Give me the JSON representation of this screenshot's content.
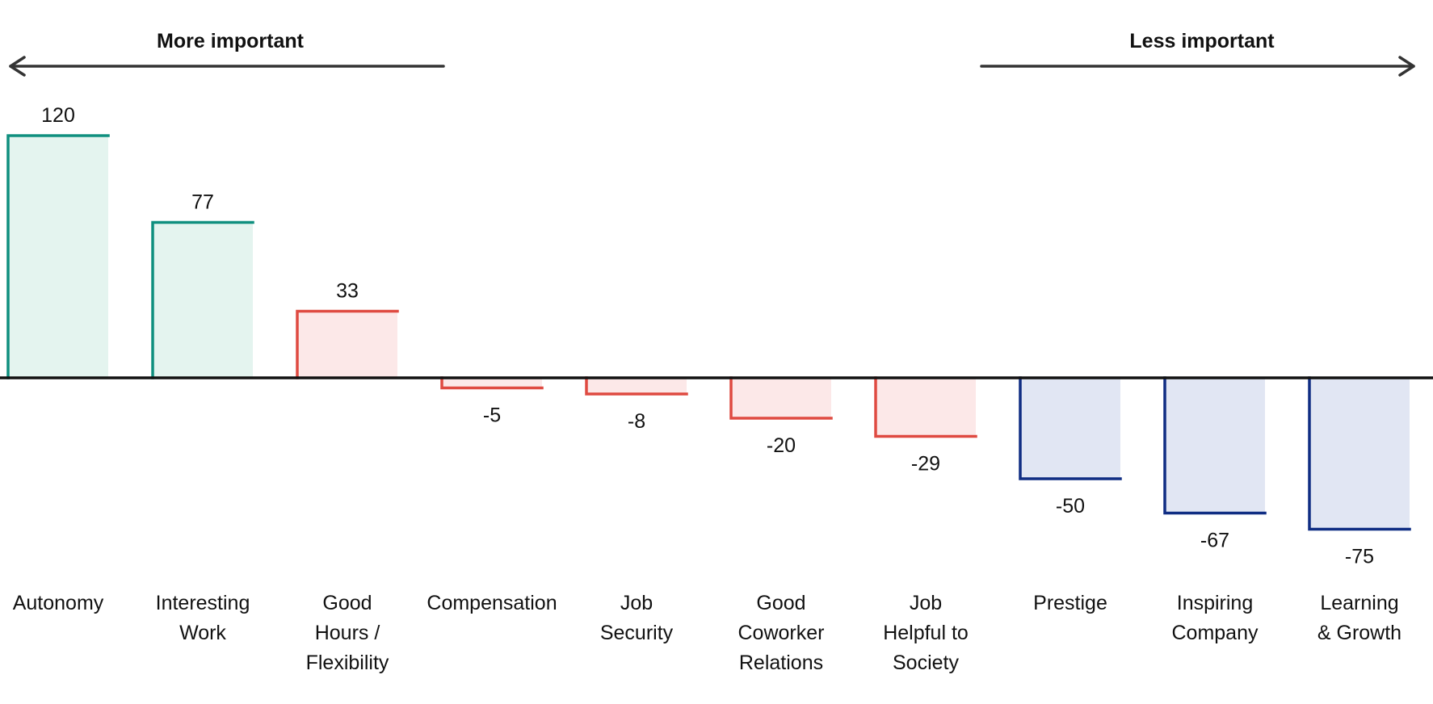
{
  "header": {
    "left_label": "More important",
    "right_label": "Less important"
  },
  "chart_data": {
    "type": "bar",
    "title": "",
    "xlabel": "",
    "ylabel": "",
    "ylim": [
      -75,
      120
    ],
    "grid": false,
    "categories": [
      [
        "Autonomy"
      ],
      [
        "Interesting",
        "Work"
      ],
      [
        "Good",
        "Hours /",
        "Flexibility"
      ],
      [
        "Compensation"
      ],
      [
        "Job",
        "Security"
      ],
      [
        "Good",
        "Coworker",
        "Relations"
      ],
      [
        "Job",
        "Helpful to",
        "Society"
      ],
      [
        "Prestige"
      ],
      [
        "Inspiring",
        "Company"
      ],
      [
        "Learning",
        "& Growth"
      ]
    ],
    "values": [
      120,
      77,
      33,
      -5,
      -8,
      -20,
      -29,
      -50,
      -67,
      -75
    ],
    "value_labels": [
      "120",
      "77",
      "33",
      "-5",
      "-8",
      "-20",
      "-29",
      "-50",
      "-67",
      "-75"
    ],
    "groups": [
      "teal",
      "teal",
      "red",
      "red",
      "red",
      "red",
      "red",
      "blue",
      "blue",
      "blue"
    ],
    "colors": {
      "teal": {
        "stroke": "#0f8f7f",
        "fill": "#e4f4ef"
      },
      "red": {
        "stroke": "#df4a41",
        "fill": "#fce8e8"
      },
      "blue": {
        "stroke": "#0f2d83",
        "fill": "#e1e6f3"
      },
      "axis": "#111111"
    }
  }
}
